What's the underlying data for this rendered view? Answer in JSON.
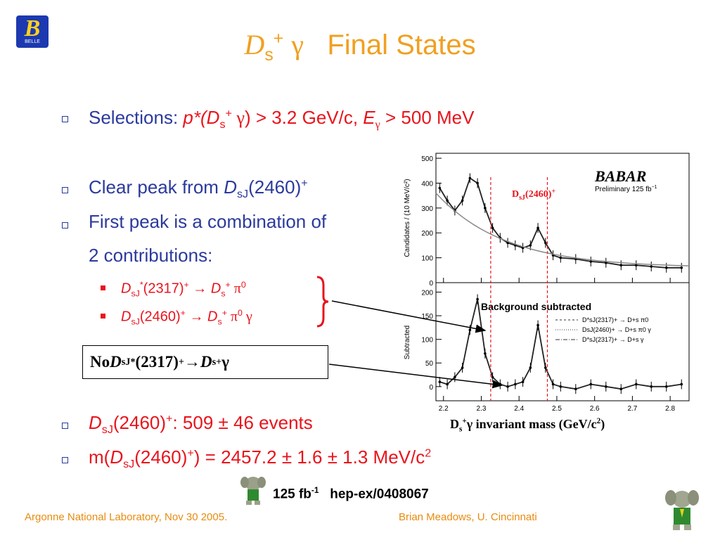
{
  "title": {
    "main": "D",
    "sub": "s",
    "sup": "+",
    "gamma": "γ",
    "rest": "Final States"
  },
  "logo": {
    "letter": "B",
    "text": "BELLE"
  },
  "bullets": {
    "selections": {
      "label": "Selections:",
      "p_star": "p*(",
      "d": "D",
      "s": "s",
      "plus": "+",
      "gamma": " γ",
      "cut1": ") > 3.2 GeV/c, ",
      "e": "E",
      "e_sub": "γ",
      "cut2": " > 500 MeV"
    },
    "peak": {
      "text": "Clear peak from ",
      "d": "D",
      "sj": "sJ",
      "value": "(2460)",
      "plus": "+"
    },
    "first_peak": {
      "line1": "First peak is a combination of",
      "line2": "2 contributions:"
    },
    "sub1": {
      "d": "D",
      "sj": "sJ",
      "star": "*",
      "value": "(2317)",
      "plus": "+",
      "arrow": " → ",
      "ds": "D",
      "s": "s",
      "ds_plus": "+",
      "pi": " π",
      "pi_sup": "0"
    },
    "sub2": {
      "d": "D",
      "sj": "sJ",
      "value": "(2460)",
      "plus": "+",
      "arrow": " → ",
      "ds": "D",
      "s": "s",
      "ds_plus": "+",
      "pi": " π",
      "pi_sup": "0",
      "gamma": " γ"
    },
    "events": {
      "d": "D",
      "sj": "sJ",
      "value": "(2460)",
      "plus": "+",
      "rest": ": 509 ± 46 events"
    },
    "mass": {
      "pre": "m(",
      "d": "D",
      "sj": "sJ",
      "value": "(2460)",
      "plus": "+",
      "rest": ") = 2457.2 ± 1.6 ± 1.3 MeV/c",
      "sup": "2"
    }
  },
  "boxed_note": {
    "no": "No ",
    "d": "D",
    "sj": "sJ",
    "star": "*",
    "value": "(2317)",
    "plus": "+",
    "arrow": " → ",
    "ds": "D",
    "s": "s",
    "ds_plus": "+",
    "gamma": " γ"
  },
  "plot": {
    "experiment": "BABAR",
    "preliminary": "Preliminary 125 fb",
    "preliminary_sup": "−1",
    "peak_label": "D",
    "peak_label_sub": "sJ",
    "peak_label_rest": "(2460)",
    "peak_label_sup": "+",
    "top_ylabel": "Candidates / (10 MeV/c²)",
    "bottom_ylabel": "Subtracted",
    "bg_subtracted": "Background subtracted",
    "legend": [
      "D*sJ(2317)+ → D+s π0",
      "DsJ(2460)+ → D+s π0 γ",
      "D*sJ(2317)+ → D+s γ"
    ],
    "top_yticks": [
      "500",
      "400",
      "300",
      "200",
      "100",
      "0"
    ],
    "bottom_yticks": [
      "200",
      "150",
      "100",
      "50",
      "0"
    ],
    "xticks": [
      "2.2",
      "2.3",
      "2.4",
      "2.5",
      "2.6",
      "2.7",
      "2.8"
    ],
    "xlabel": {
      "d": "D",
      "s": "s",
      "plus": "+",
      "gamma": "γ",
      "rest": "  invariant mass (GeV/c",
      "sup": "2",
      "close": ")"
    }
  },
  "chart_data": {
    "type": "scatter",
    "xlabel": "Ds+γ invariant mass (GeV/c²)",
    "ylabel": "Candidates / (10 MeV/c²)",
    "xlim": [
      2.18,
      2.85
    ],
    "panels": [
      {
        "name": "top",
        "ylim": [
          0,
          520
        ],
        "x": [
          2.19,
          2.21,
          2.23,
          2.25,
          2.27,
          2.29,
          2.31,
          2.33,
          2.35,
          2.37,
          2.39,
          2.41,
          2.43,
          2.45,
          2.47,
          2.49,
          2.51,
          2.55,
          2.59,
          2.63,
          2.67,
          2.71,
          2.75,
          2.79,
          2.83
        ],
        "y": [
          380,
          330,
          290,
          330,
          420,
          400,
          300,
          220,
          180,
          160,
          150,
          140,
          150,
          220,
          160,
          110,
          100,
          95,
          85,
          80,
          70,
          70,
          65,
          60,
          60
        ]
      },
      {
        "name": "bottom",
        "ylim": [
          -30,
          220
        ],
        "x": [
          2.19,
          2.21,
          2.23,
          2.25,
          2.27,
          2.29,
          2.31,
          2.33,
          2.35,
          2.37,
          2.39,
          2.41,
          2.43,
          2.45,
          2.47,
          2.49,
          2.51,
          2.55,
          2.59,
          2.63,
          2.67,
          2.71,
          2.75,
          2.79,
          2.83
        ],
        "y": [
          10,
          5,
          20,
          40,
          120,
          185,
          70,
          20,
          5,
          0,
          5,
          10,
          40,
          130,
          40,
          5,
          0,
          -5,
          5,
          0,
          -5,
          5,
          0,
          0,
          5
        ]
      }
    ]
  },
  "footer": {
    "left": "Argonne National Laboratory, Nov 30 2005.",
    "right": "Brian Meadows, U. Cincinnati",
    "lumi": "125 fb",
    "lumi_sup": "-1",
    "ref": "hep-ex/0408067"
  }
}
